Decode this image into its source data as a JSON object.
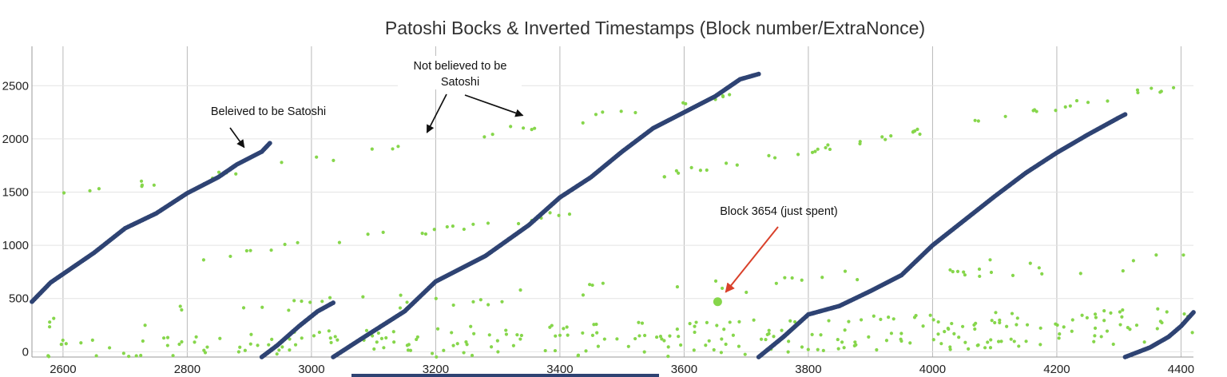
{
  "chart_data": {
    "type": "scatter",
    "title": "Patoshi Bocks & Inverted Timestamps (Block number/ExtraNonce)",
    "xlabel": "",
    "ylabel": "",
    "xlim": [
      2550,
      4420
    ],
    "ylim": [
      -50,
      2870
    ],
    "x_ticks": [
      2600,
      2800,
      3000,
      3200,
      3400,
      3600,
      3800,
      4000,
      4200,
      4400
    ],
    "y_ticks": [
      0,
      500,
      1000,
      1500,
      2000,
      2500
    ],
    "grid": "vertical lines at x ticks, horizontal lines at y ticks",
    "colors": {
      "patoshi": "#2e4373",
      "other": "#86d64b",
      "annotation": "#000000",
      "highlight_arrow": "#d9412b"
    },
    "series": [
      {
        "style": "patoshi-band",
        "segments": [
          {
            "points": [
              [
                2550,
                470
              ],
              [
                2580,
                650
              ],
              [
                2600,
                730
              ],
              [
                2650,
                930
              ],
              [
                2700,
                1160
              ],
              [
                2750,
                1300
              ],
              [
                2800,
                1490
              ],
              [
                2850,
                1640
              ],
              [
                2880,
                1760
              ],
              [
                2920,
                1880
              ],
              [
                2933,
                1960
              ]
            ]
          },
          {
            "points": [
              [
                2920,
                -50
              ],
              [
                2945,
                60
              ],
              [
                2980,
                240
              ],
              [
                3010,
                380
              ],
              [
                3035,
                460
              ]
            ]
          },
          {
            "points": [
              [
                3035,
                -50
              ],
              [
                3080,
                120
              ],
              [
                3150,
                380
              ],
              [
                3200,
                660
              ],
              [
                3280,
                900
              ],
              [
                3350,
                1190
              ],
              [
                3400,
                1450
              ],
              [
                3450,
                1640
              ],
              [
                3500,
                1880
              ],
              [
                3550,
                2100
              ],
              [
                3600,
                2250
              ],
              [
                3650,
                2400
              ],
              [
                3690,
                2560
              ],
              [
                3720,
                2610
              ]
            ]
          },
          {
            "points": [
              [
                3720,
                -50
              ],
              [
                3760,
                140
              ],
              [
                3800,
                350
              ],
              [
                3850,
                430
              ],
              [
                3900,
                570
              ],
              [
                3950,
                720
              ],
              [
                4000,
                1000
              ],
              [
                4050,
                1230
              ],
              [
                4100,
                1460
              ],
              [
                4150,
                1680
              ],
              [
                4200,
                1870
              ],
              [
                4250,
                2040
              ],
              [
                4300,
                2200
              ],
              [
                4310,
                2230
              ]
            ]
          },
          {
            "points": [
              [
                4310,
                -50
              ],
              [
                4350,
                40
              ],
              [
                4380,
                140
              ],
              [
                4400,
                240
              ],
              [
                4420,
                370
              ]
            ]
          }
        ]
      },
      {
        "style": "other-green",
        "bands": [
          {
            "from": [
              2570,
              270
            ],
            "to": [
              4410,
              880
            ],
            "count": 60,
            "jitter": 90
          },
          {
            "from": [
              2680,
              780
            ],
            "to": [
              3420,
              1300
            ],
            "count": 24,
            "jitter": 40
          },
          {
            "from": [
              2600,
              1450
            ],
            "to": [
              3680,
              2400
            ],
            "count": 34,
            "jitter": 40
          },
          {
            "from": [
              3560,
              1650
            ],
            "to": [
              4420,
              2520
            ],
            "count": 46,
            "jitter": 30
          },
          {
            "from": [
              2560,
              -40
            ],
            "to": [
              4420,
              250
            ],
            "count": 330,
            "jitter": 170
          }
        ]
      }
    ],
    "highlight": {
      "x": 3654,
      "y": 470,
      "label": "Block 3654 (just spent)"
    },
    "annotations": [
      {
        "text": "Beleived to be Satoshi",
        "arrow_to": [
          2893,
          1950
        ]
      },
      {
        "text": "Not believed to be Satoshi",
        "lines": [
          "Not believed to be",
          "Satoshi"
        ],
        "arrow_to": [
          [
            3186,
            2045
          ],
          [
            3330,
            2175
          ]
        ]
      },
      {
        "text": "Block 3654 (just spent)",
        "arrow_to": [
          3654,
          530
        ]
      }
    ]
  }
}
